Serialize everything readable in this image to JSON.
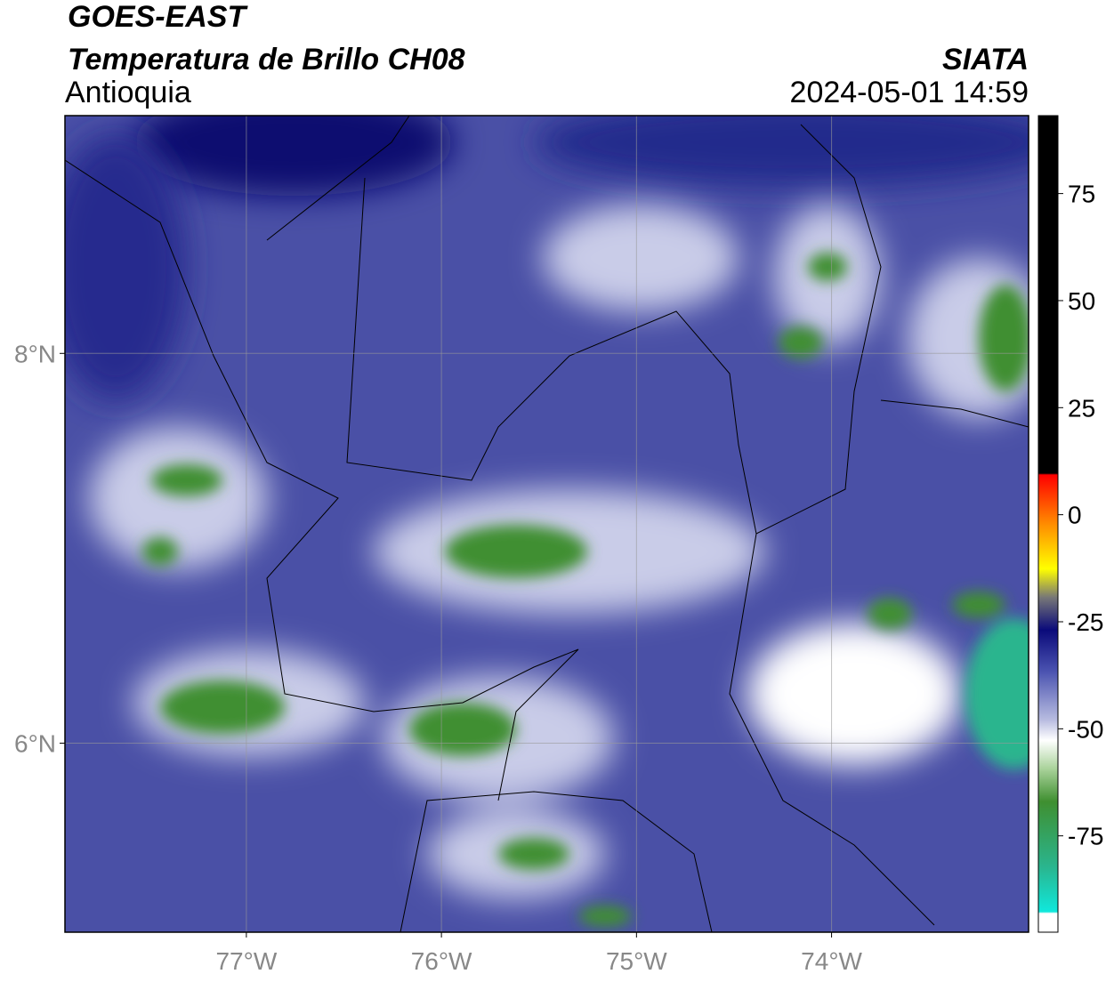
{
  "header": {
    "satellite": "GOES-EAST",
    "product": "Temperatura de Brillo CH08",
    "region": "Antioquia",
    "source": "SIATA",
    "datetime": "2024-05-01 14:59"
  },
  "map": {
    "xlim": [
      -77.93,
      -72.99
    ],
    "ylim": [
      5.03,
      9.22
    ],
    "xticks": [
      {
        "value": -77,
        "label": "77°W"
      },
      {
        "value": -76,
        "label": "76°W"
      },
      {
        "value": -75,
        "label": "75°W"
      },
      {
        "value": -74,
        "label": "74°W"
      }
    ],
    "yticks": [
      {
        "value": 8,
        "label": "8°N"
      },
      {
        "value": 6,
        "label": "6°N"
      }
    ]
  },
  "colorbar": {
    "range": [
      -97.5,
      93.2
    ],
    "ticks": [
      75,
      50,
      25,
      0,
      -25,
      -50,
      -75
    ]
  }
}
